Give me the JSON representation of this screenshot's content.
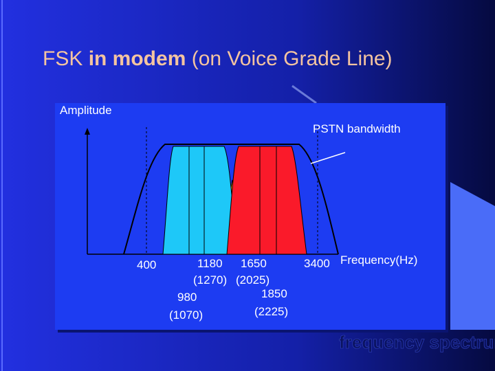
{
  "title": {
    "parts": [
      "FSK ",
      "in modem",
      " (on Voice Grade Line)"
    ]
  },
  "diagram": {
    "y_axis_label": "Amplitude",
    "x_axis_label": "Frequency(Hz)",
    "bandwidth_label": "PSTN bandwidth",
    "labels": {
      "low_edge": "400",
      "high_edge": "3400",
      "ch1_space": "1180",
      "ch1_space_alt": "(1270)",
      "ch1_mark": "980",
      "ch1_mark_alt": "(1070)",
      "ch2_space": "1650",
      "ch2_space_alt": "(2025)",
      "ch2_mark": "1850",
      "ch2_mark_alt": "(2225)"
    }
  },
  "footer": "frequency spectrum"
}
